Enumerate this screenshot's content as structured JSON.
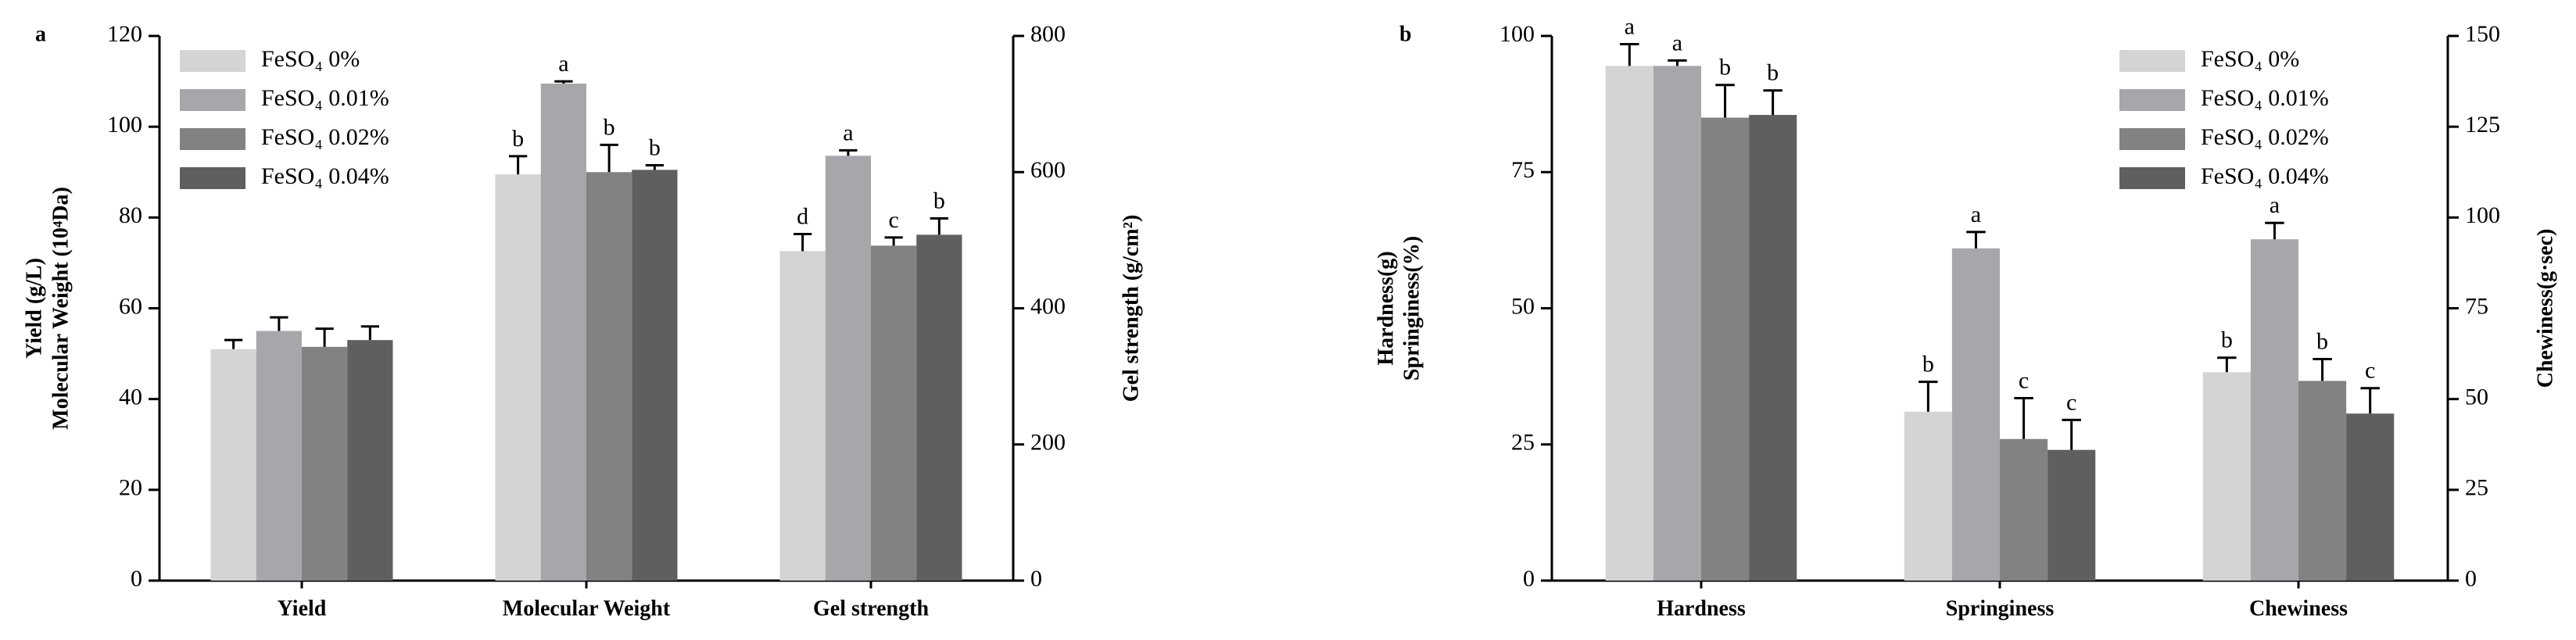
{
  "chart_data": [
    {
      "type": "bar",
      "panel": "a",
      "categories": [
        "Yield",
        "Molecular Weight",
        "Gel strength"
      ],
      "category_axis": [
        "y",
        "y",
        "y2"
      ],
      "ylabel": [
        "Yield (g/L)",
        "Molecular Weight (10⁴Da)"
      ],
      "y2label": "Gel strength (g/cm²)",
      "ylim": [
        0,
        120
      ],
      "yticks": [
        0,
        20,
        40,
        60,
        80,
        100,
        120
      ],
      "y2lim": [
        0,
        800
      ],
      "y2ticks": [
        0,
        200,
        400,
        600,
        800
      ],
      "legend": "upper left",
      "series": [
        {
          "name": "FeSO₄ 0%",
          "color": "#d4d4d4",
          "values": [
            51,
            89.5,
            484
          ],
          "errors": [
            2,
            4,
            25
          ],
          "labels": [
            null,
            "b",
            "d"
          ]
        },
        {
          "name": "FeSO₄ 0.01%",
          "color": "#a7a7ab",
          "values": [
            55,
            109.5,
            624
          ],
          "errors": [
            3,
            0.5,
            8
          ],
          "labels": [
            null,
            "a",
            "a"
          ]
        },
        {
          "name": "FeSO₄ 0.02%",
          "color": "#828282",
          "values": [
            51.5,
            90,
            492
          ],
          "errors": [
            4,
            6,
            12
          ],
          "labels": [
            null,
            "b",
            "c"
          ]
        },
        {
          "name": "FeSO₄ 0.04%",
          "color": "#5f5f5f",
          "values": [
            53,
            90.5,
            508
          ],
          "errors": [
            3,
            1,
            24
          ],
          "labels": [
            null,
            "b",
            "b"
          ]
        }
      ]
    },
    {
      "type": "bar",
      "panel": "b",
      "categories": [
        "Hardness",
        "Springiness",
        "Chewiness"
      ],
      "category_axis": [
        "y",
        "y",
        "y2"
      ],
      "ylabel": [
        "Hardness(g)",
        "Springiness(%)"
      ],
      "y2label": "Chewiness(g·sec)",
      "ylim": [
        0,
        100
      ],
      "yticks": [
        0,
        25,
        50,
        75,
        100
      ],
      "y2lim": [
        0,
        150
      ],
      "y2ticks": [
        0,
        25,
        50,
        75,
        100,
        125,
        150
      ],
      "legend": "upper right",
      "series": [
        {
          "name": "FeSO₄ 0%",
          "color": "#d4d4d4",
          "values": [
            94.5,
            31,
            57.4
          ],
          "errors": [
            4,
            5.5,
            4
          ],
          "labels": [
            "a",
            "b",
            "b"
          ]
        },
        {
          "name": "FeSO₄ 0.01%",
          "color": "#a7a7ab",
          "values": [
            94.5,
            61,
            94
          ],
          "errors": [
            1,
            3,
            4.5
          ],
          "labels": [
            "a",
            "a",
            "a"
          ]
        },
        {
          "name": "FeSO₄ 0.02%",
          "color": "#828282",
          "values": [
            85,
            26,
            55
          ],
          "errors": [
            6,
            7.5,
            6
          ],
          "labels": [
            "b",
            "c",
            "b"
          ]
        },
        {
          "name": "FeSO₄ 0.04%",
          "color": "#5f5f5f",
          "values": [
            85.5,
            24,
            46
          ],
          "errors": [
            4.5,
            5.5,
            7
          ],
          "labels": [
            "b",
            "c",
            "c"
          ]
        }
      ]
    }
  ]
}
